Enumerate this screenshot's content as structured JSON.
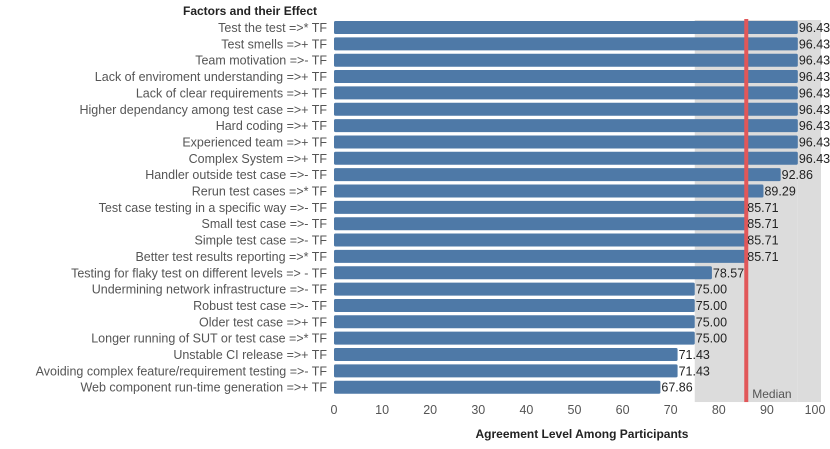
{
  "chart_data": {
    "type": "bar",
    "orientation": "horizontal",
    "row_header": "Factors and their Effect",
    "xlabel": "Agreement Level Among Participants",
    "xlim": [
      0,
      100
    ],
    "x_ticks": [
      "0",
      "10",
      "20",
      "30",
      "40",
      "50",
      "60",
      "70",
      "80",
      "90",
      "100"
    ],
    "median_value": 85.71,
    "median_band": [
      75,
      96.43
    ],
    "median_label": "Median",
    "grid": false,
    "colors": {
      "bar": "#4e79a7",
      "median_line": "#e15759",
      "band": "#dcdcdc",
      "label": "#555555",
      "value_label": "#222222"
    },
    "categories": [
      "Test the test =>* TF",
      "Test smells =>+ TF",
      "Team motivation =>- TF",
      "Lack of enviroment understanding  =>+ TF",
      "Lack of clear requirements =>+ TF",
      "Higher dependancy among test case =>+ TF",
      "Hard coding =>+ TF",
      "Experienced team =>+ TF",
      "Complex System =>+ TF",
      "Handler outside test case =>- TF",
      "Rerun test cases =>* TF",
      "Test case testing in a specific way =>- TF",
      "Small test case  =>- TF",
      "Simple test case  =>- TF",
      "Better test results reporting =>* TF",
      "Testing for flaky test on different levels =>  - TF",
      "Undermining network infrastructure  =>- TF",
      "Robust test case  =>- TF",
      "Older test case =>+ TF",
      "Longer running of SUT or test case =>* TF",
      "Unstable CI release =>+ TF",
      "Avoiding complex feature/requirement testing =>- TF",
      "Web component run-time generation =>+ TF"
    ],
    "values": [
      96.43,
      96.43,
      96.43,
      96.43,
      96.43,
      96.43,
      96.43,
      96.43,
      96.43,
      92.86,
      89.29,
      85.71,
      85.71,
      85.71,
      85.71,
      78.57,
      75.0,
      75.0,
      75.0,
      75.0,
      71.43,
      71.43,
      67.86
    ],
    "value_labels": [
      "96.43",
      "96.43",
      "96.43",
      "96.43",
      "96.43",
      "96.43",
      "96.43",
      "96.43",
      "96.43",
      "92.86",
      "89.29",
      "85.71",
      "85.71",
      "85.71",
      "85.71",
      "78.57",
      "75.00",
      "75.00",
      "75.00",
      "75.00",
      "71.43",
      "71.43",
      "67.86"
    ]
  }
}
